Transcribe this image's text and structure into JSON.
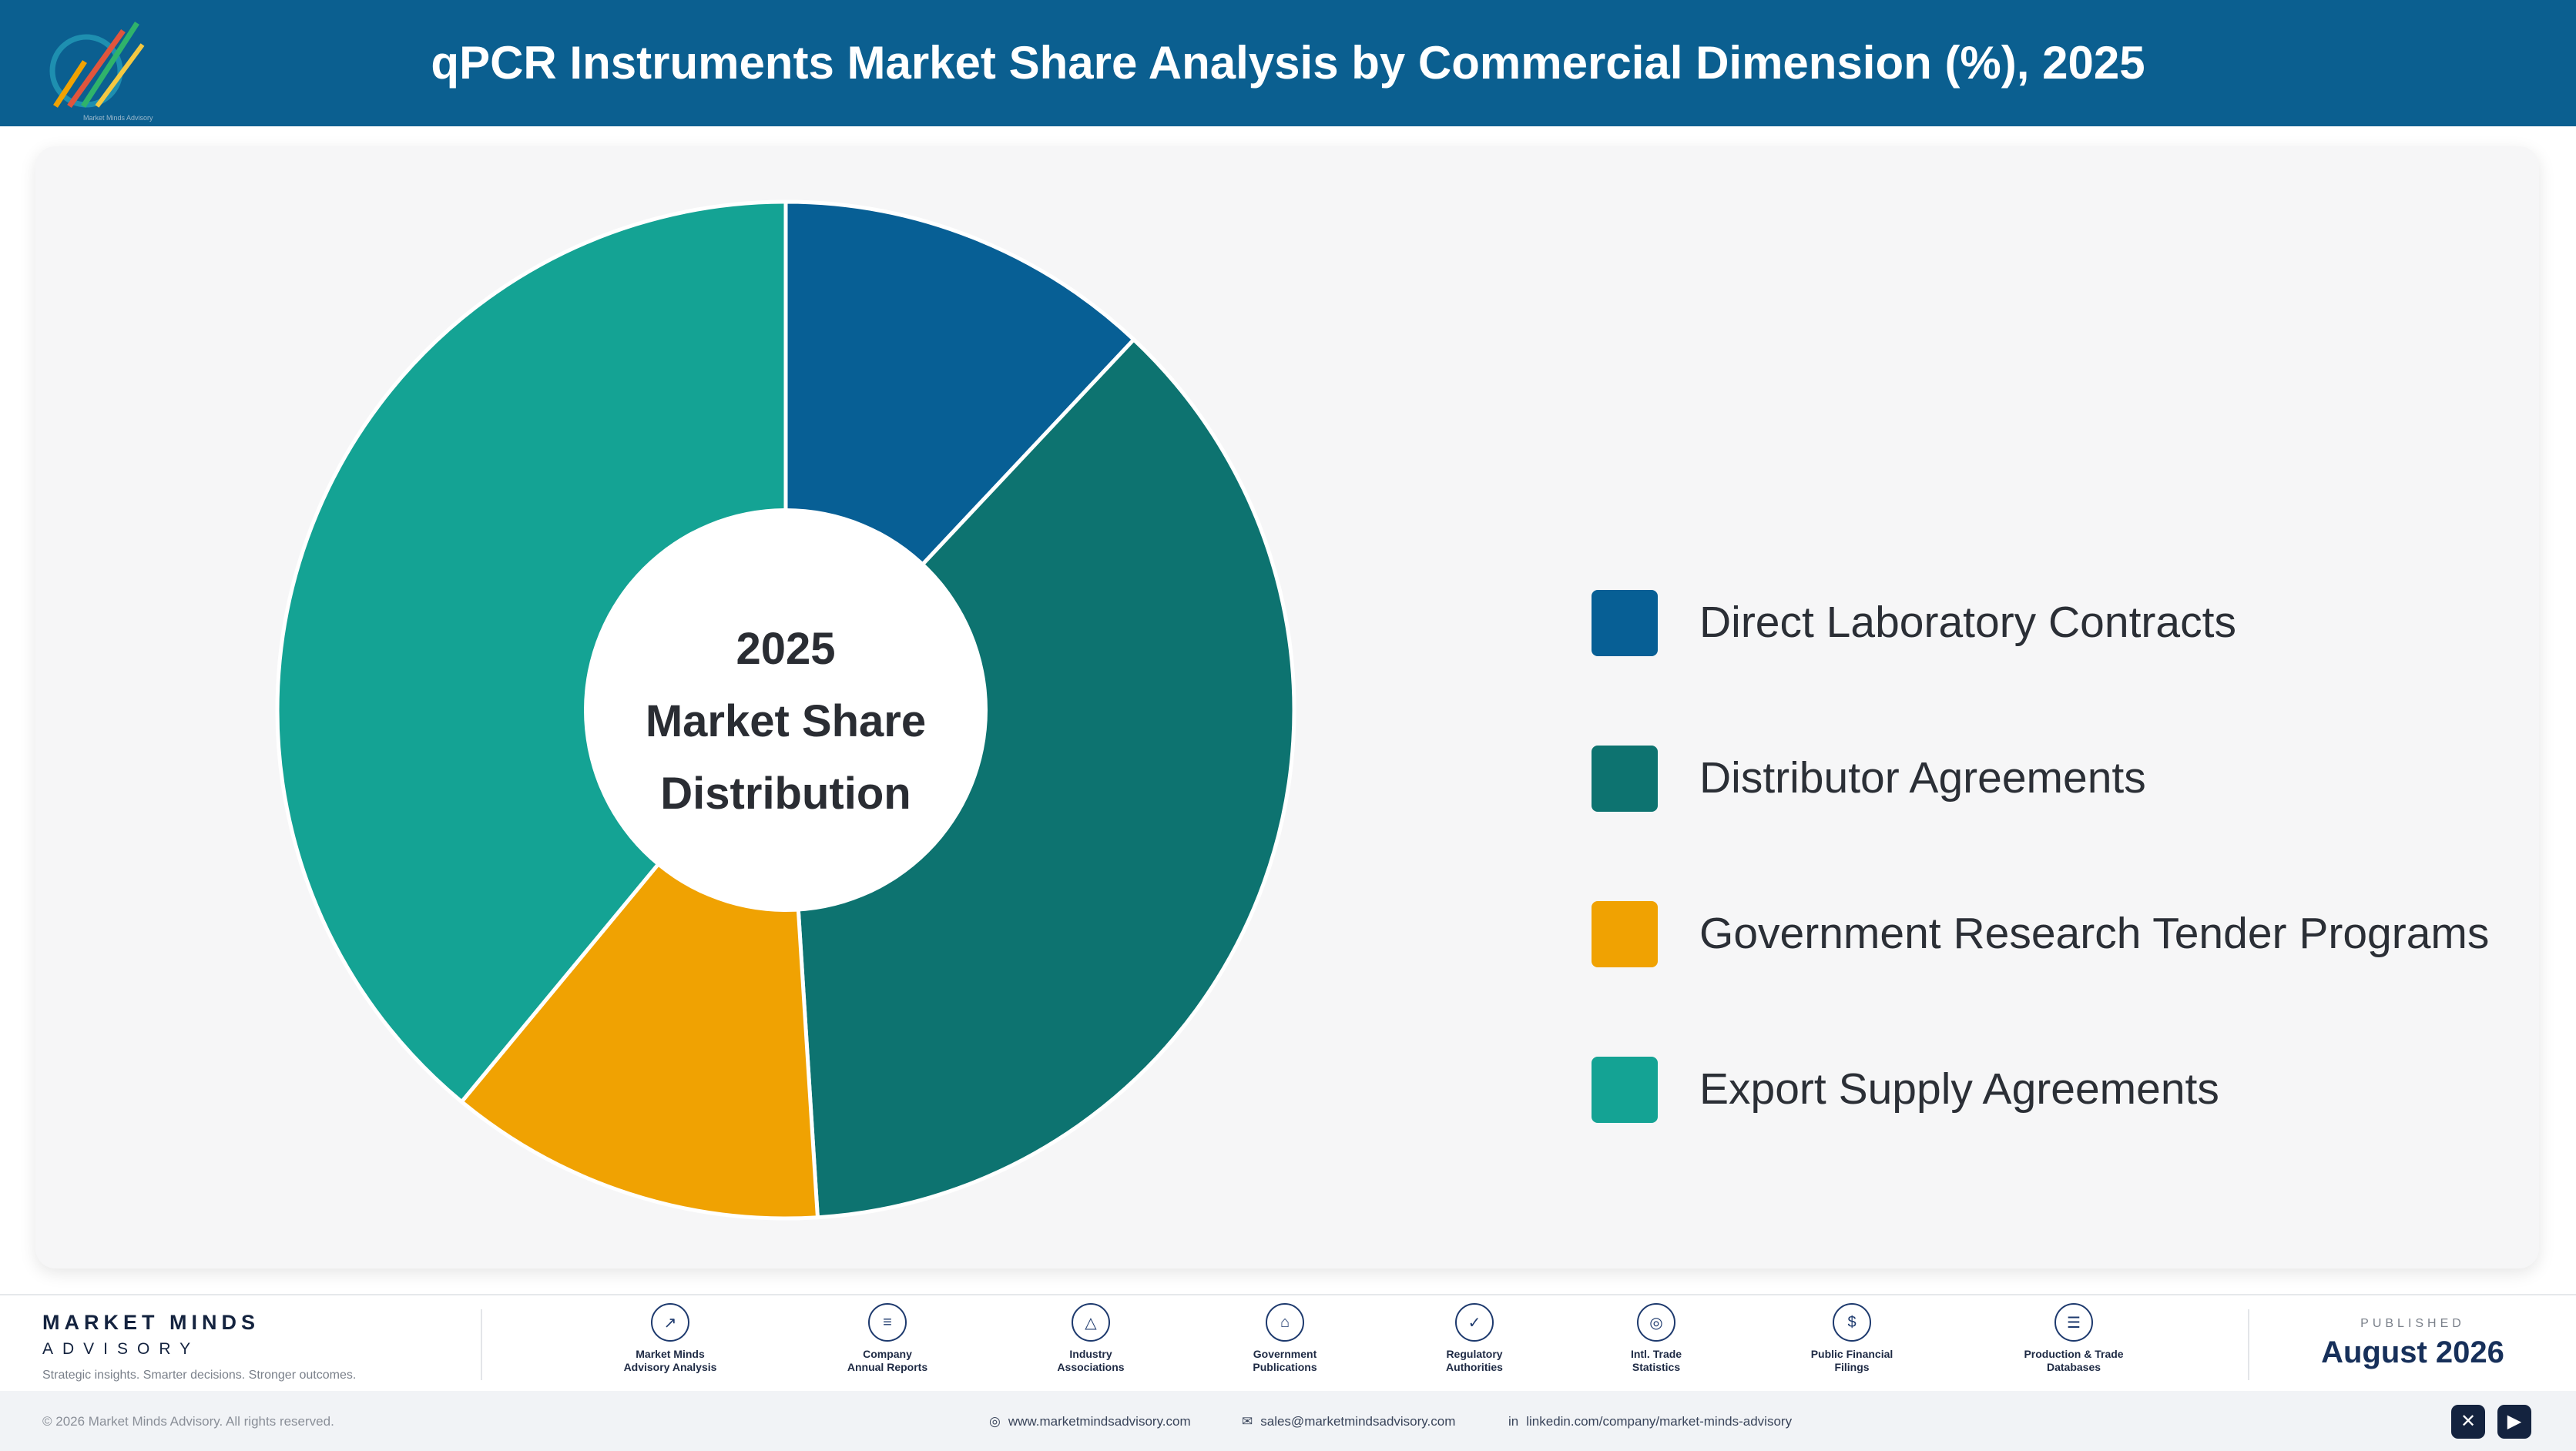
{
  "header": {
    "title": "qPCR Instruments Market Share Analysis by Commercial Dimension (%), 2025",
    "logo_icon": "market-minds-logo-icon"
  },
  "chart_data": {
    "type": "pie",
    "variant": "donut",
    "title": "qPCR Instruments Market Share Analysis by Commercial Dimension (%), 2025",
    "center_label": [
      "2025",
      "Market Share",
      "Distribution"
    ],
    "categories": [
      "Direct Laboratory Contracts",
      "Distributor Agreements",
      "Government Research Tender Programs",
      "Export Supply Agreements"
    ],
    "values": [
      12,
      37,
      12,
      39
    ],
    "colors": [
      "#075f95",
      "#0d7370",
      "#f0a202",
      "#14a394"
    ],
    "legend_position": "right"
  },
  "footer": {
    "brand_name": "MARKET MINDS",
    "brand_sub": "ADVISORY",
    "tagline": "Strategic insights. Smarter decisions. Stronger outcomes.",
    "sources": [
      {
        "line1": "Market Minds",
        "line2": "Advisory Analysis",
        "icon": "trend-line-icon"
      },
      {
        "line1": "Company",
        "line2": "Annual Reports",
        "icon": "document-icon"
      },
      {
        "line1": "Industry",
        "line2": "Associations",
        "icon": "network-icon"
      },
      {
        "line1": "Government",
        "line2": "Publications",
        "icon": "building-icon"
      },
      {
        "line1": "Regulatory",
        "line2": "Authorities",
        "icon": "shield-check-icon"
      },
      {
        "line1": "Intl. Trade",
        "line2": "Statistics",
        "icon": "globe-icon"
      },
      {
        "line1": "Public Financial",
        "line2": "Filings",
        "icon": "dollar-coin-icon"
      },
      {
        "line1": "Production & Trade",
        "line2": "Databases",
        "icon": "database-icon"
      }
    ],
    "published_label": "PUBLISHED",
    "published_date": "August 2026",
    "copyright": "© 2026 Market Minds Advisory. All rights reserved.",
    "website": "www.marketmindsadvisory.com",
    "email": "sales@marketmindsadvisory.com",
    "linkedin": "linkedin.com/company/market-minds-advisory",
    "social_icons": [
      "x-icon",
      "youtube-icon"
    ]
  }
}
